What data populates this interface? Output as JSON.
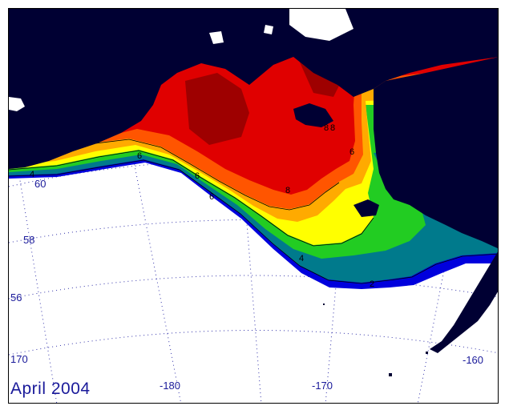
{
  "map": {
    "title": "April 2004",
    "lat_labels": [
      {
        "id": "lat-60",
        "text": "60"
      },
      {
        "id": "lat-58",
        "text": "58"
      },
      {
        "id": "lat-56",
        "text": "56"
      }
    ],
    "lon_labels": [
      {
        "id": "lon-w170",
        "text": "170"
      },
      {
        "id": "lon-m180",
        "text": "-180"
      },
      {
        "id": "lon-m170",
        "text": "-170"
      },
      {
        "id": "lon-m160",
        "text": "-160"
      }
    ],
    "contour_labels": [
      "2",
      "4",
      "6",
      "8",
      "6",
      "8",
      "8",
      "6",
      "6",
      "4"
    ],
    "colors": {
      "land": "#000033",
      "ocean": "#ffffff",
      "ice_blue": "#0000dd",
      "ice_teal": "#007a8c",
      "ice_green": "#22cc22",
      "ice_yellow": "#ffff00",
      "ice_orange": "#ffaa00",
      "ice_redorange": "#ff5500",
      "ice_red": "#e00000",
      "ice_darkred": "#9e0000",
      "graticule": "#0000aa"
    }
  }
}
